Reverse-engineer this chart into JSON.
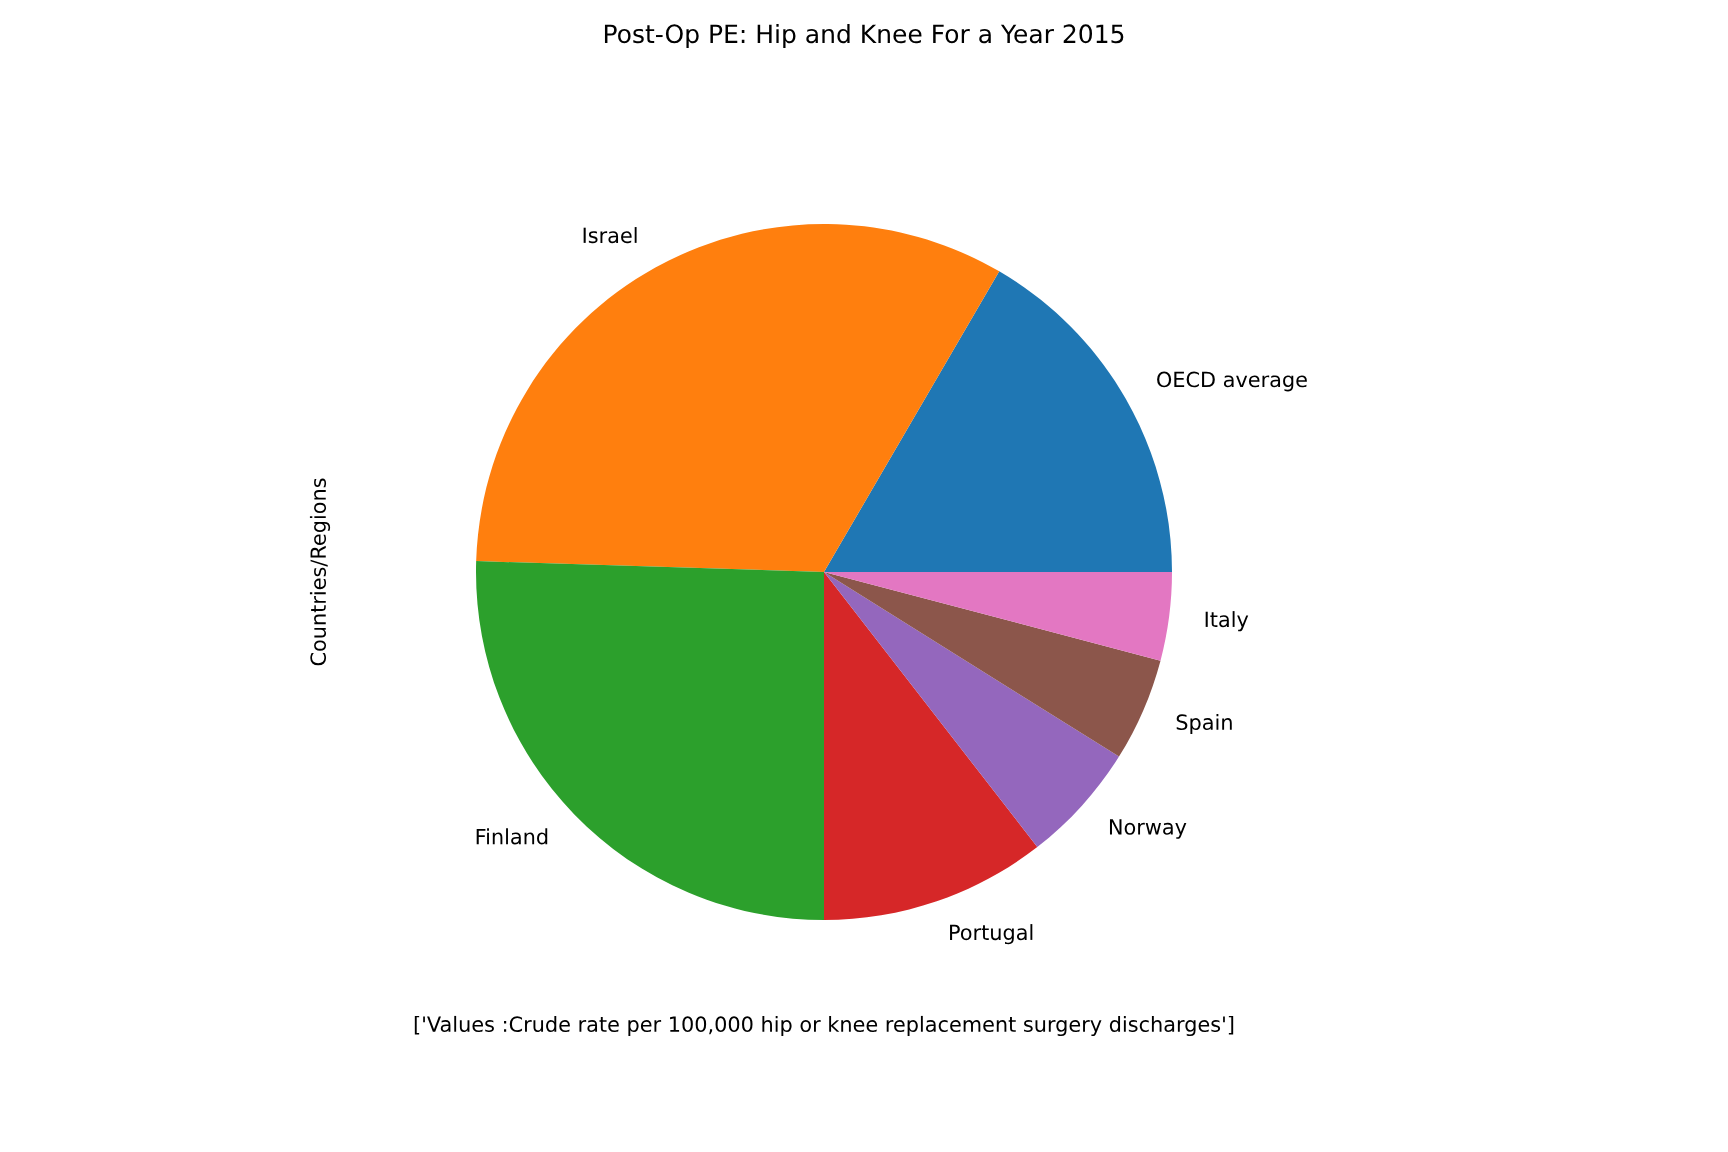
{
  "chart_data": {
    "type": "pie",
    "title": "Post-Op PE: Hip and Knee For a Year 2015",
    "xlabel": "['Values :Crude rate per 100,000 hip or knee replacement surgery discharges']",
    "ylabel": "Countries/Regions",
    "categories": [
      "OECD average",
      "Israel",
      "Finland",
      "Portugal",
      "Norway",
      "Spain",
      "Italy"
    ],
    "values": [
      16.6,
      32.9,
      25.5,
      10.5,
      5.6,
      4.8,
      4.1
    ],
    "colors": [
      "#1f77b4",
      "#ff7f0e",
      "#2ca02c",
      "#d62728",
      "#9467bd",
      "#8c564b",
      "#e377c2"
    ],
    "legend": false
  }
}
